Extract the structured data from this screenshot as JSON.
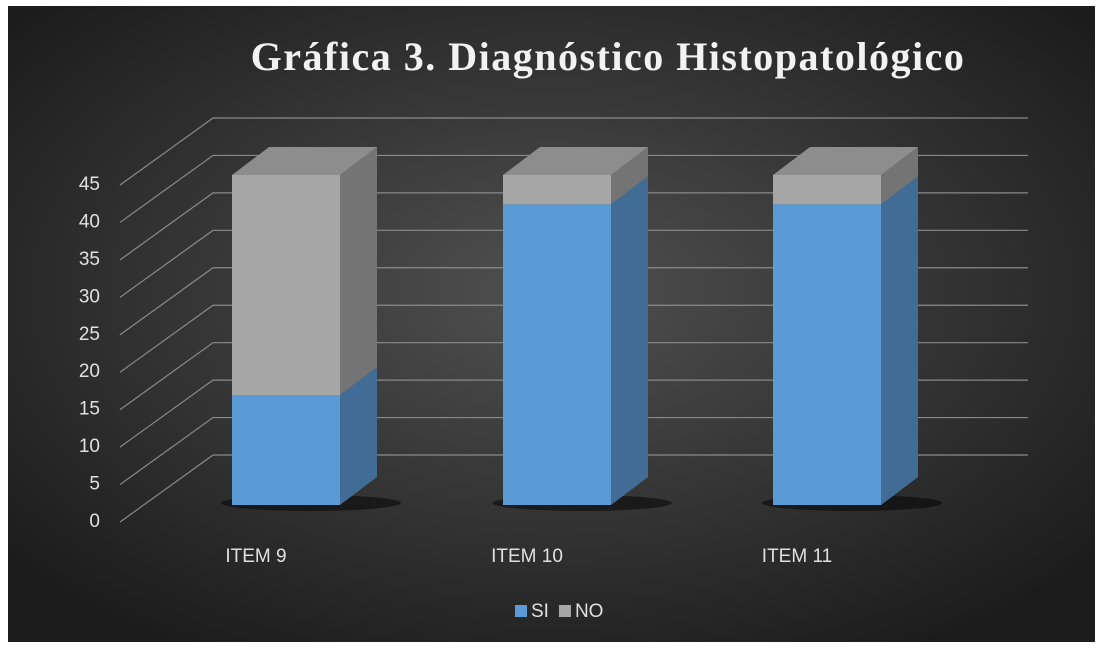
{
  "chart_data": {
    "type": "bar3d_stacked",
    "title": "Gráfica 3. Diagnóstico Histopatológico",
    "categories": [
      "ITEM 9",
      "ITEM 10",
      "ITEM 11"
    ],
    "series": [
      {
        "name": "SI",
        "color": "#5b9bd5",
        "values": [
          15,
          41,
          41
        ]
      },
      {
        "name": "NO",
        "color": "#a6a6a6",
        "values": [
          30,
          4,
          4
        ]
      }
    ],
    "ylim": [
      0,
      45
    ],
    "yticks": [
      0,
      5,
      10,
      15,
      20,
      25,
      30,
      35,
      40,
      45
    ],
    "grid": true,
    "legend": "bottom"
  }
}
